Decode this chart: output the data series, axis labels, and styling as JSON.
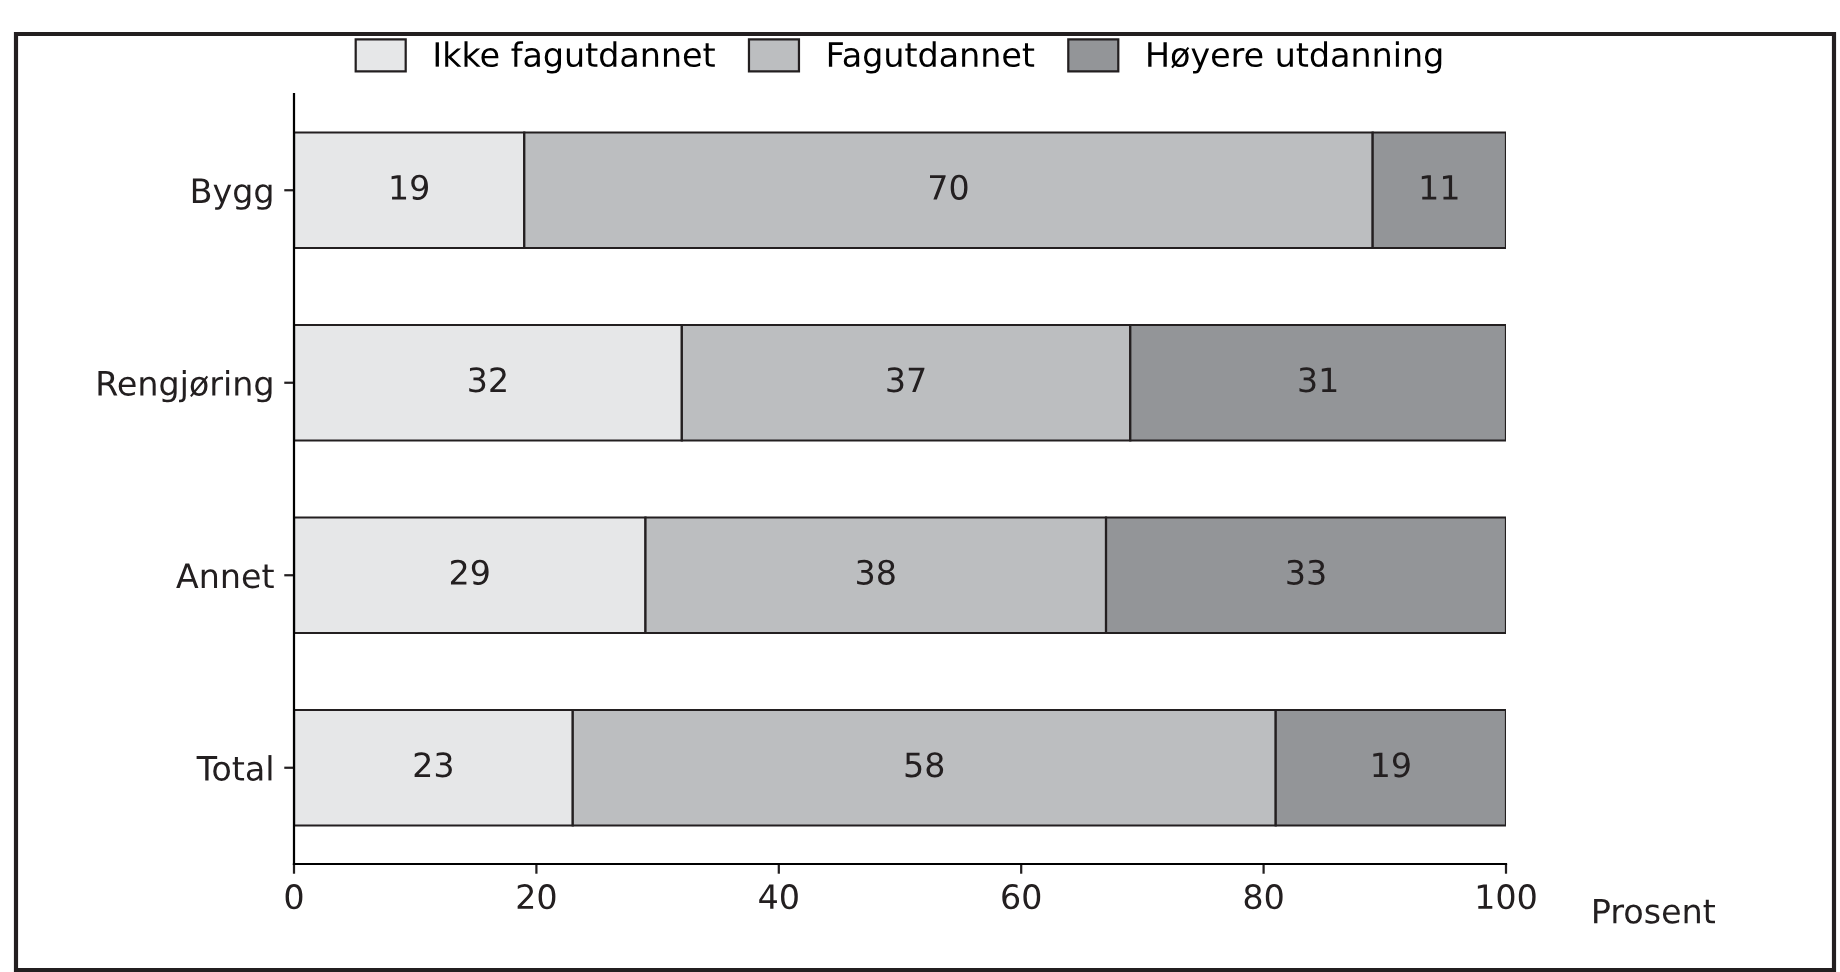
{
  "chart_data": {
    "type": "bar",
    "orientation": "horizontal",
    "stacked": true,
    "categories": [
      "Bygg",
      "Rengjøring",
      "Annet",
      "Total"
    ],
    "series": [
      {
        "name": "Ikke fagutdannet",
        "color": "#e6e7e8",
        "values": [
          19,
          32,
          29,
          23
        ]
      },
      {
        "name": "Fagutdannet",
        "color": "#bcbec0",
        "values": [
          70,
          37,
          38,
          58
        ]
      },
      {
        "name": "Høyere utdanning",
        "color": "#939598",
        "values": [
          11,
          31,
          33,
          19
        ]
      }
    ],
    "xlabel": "Prosent",
    "xlim": [
      0,
      100
    ],
    "xticks": [
      0,
      20,
      40,
      60,
      80,
      100
    ],
    "data_labels": true,
    "grid": false,
    "legend": "top"
  }
}
